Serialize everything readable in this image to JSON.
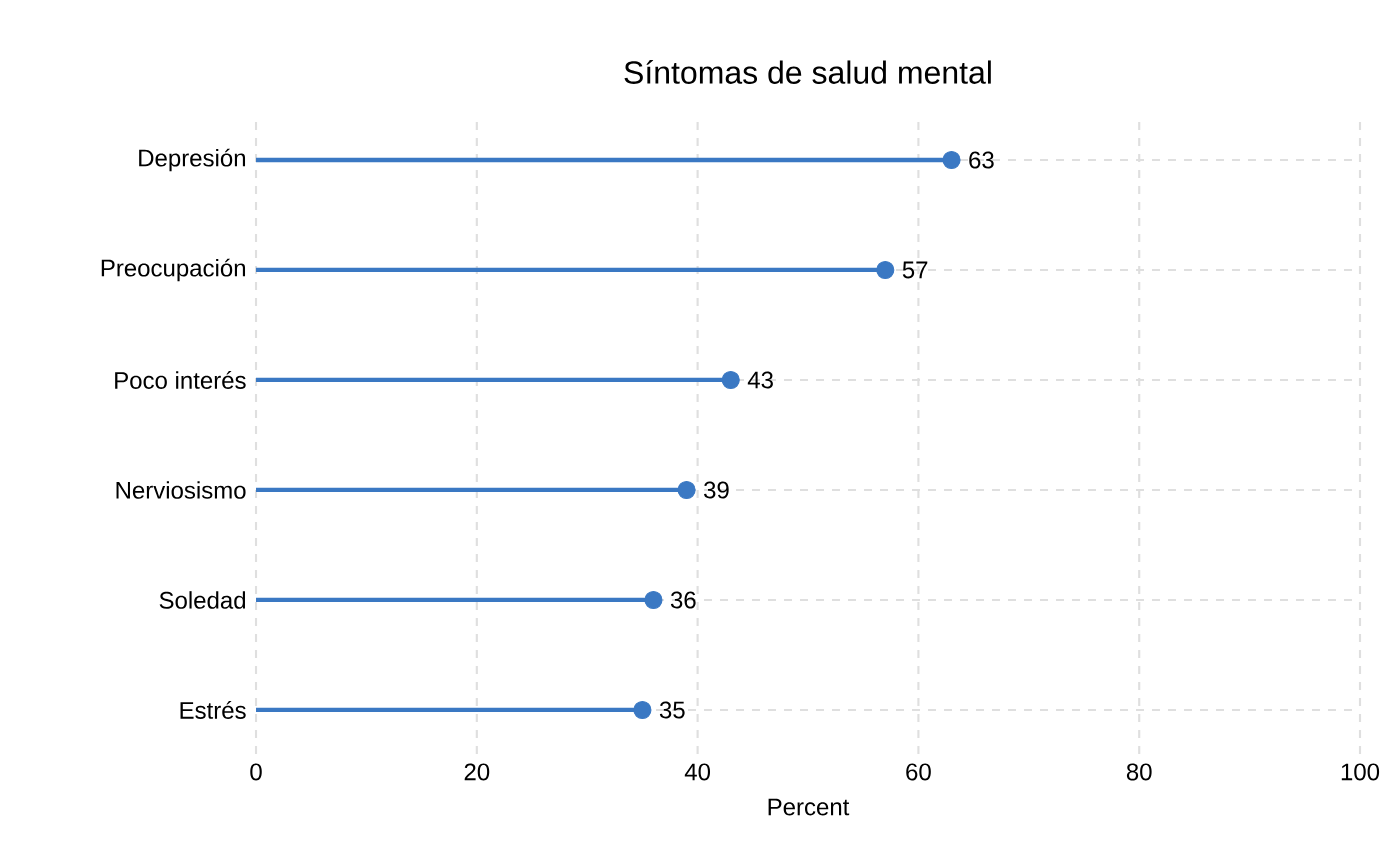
{
  "chart_data": {
    "type": "lollipop",
    "title": "Síntomas de salud mental",
    "xlabel": "Percent",
    "orientation": "horizontal",
    "categories": [
      "Depresión",
      "Preocupación",
      "Poco interés",
      "Nerviosismo",
      "Soledad",
      "Estrés"
    ],
    "values": [
      63,
      57,
      43,
      39,
      36,
      35
    ],
    "color": "#3a78c3",
    "xlim": [
      0,
      100
    ],
    "xticks": [
      0,
      20,
      40,
      60,
      80,
      100
    ],
    "grid": true,
    "data_labels": true,
    "line_style": "solid"
  }
}
